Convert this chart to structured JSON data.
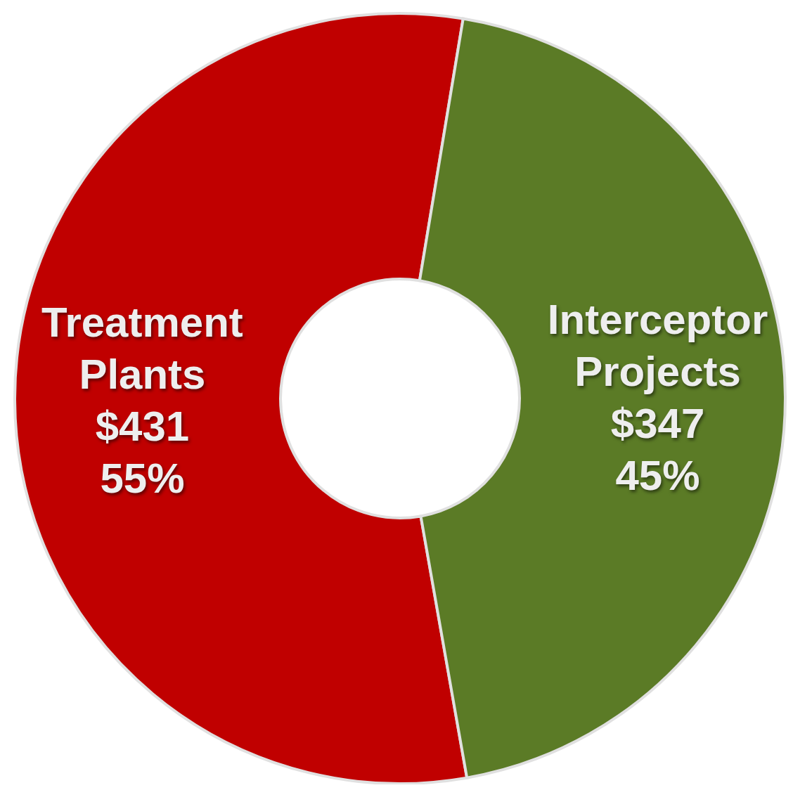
{
  "chart_data": {
    "type": "donut",
    "categories": [
      "Treatment Plants",
      "Interceptor Projects"
    ],
    "values": [
      431,
      347
    ],
    "colors": [
      "#c00000",
      "#5b7b26"
    ],
    "value_labels": [
      "$431\n55%",
      "$347\n45%"
    ]
  }
}
